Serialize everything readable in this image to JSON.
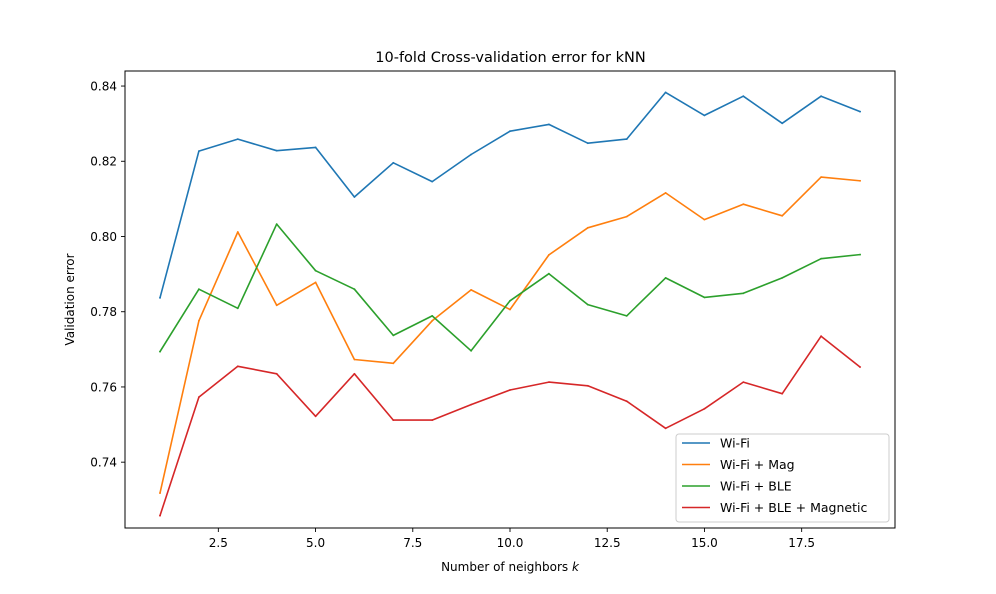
{
  "chart_data": {
    "type": "line",
    "title": "10-fold Cross-validation error for kNN",
    "xlabel": "Number of neighbors",
    "xlabel_var": "k",
    "ylabel": "Validation error",
    "xlim": [
      0.1,
      19.9
    ],
    "ylim": [
      0.7225,
      0.844
    ],
    "xticks": [
      2.5,
      5.0,
      7.5,
      10.0,
      12.5,
      15.0,
      17.5
    ],
    "xtick_labels": [
      "2.5",
      "5.0",
      "7.5",
      "10.0",
      "12.5",
      "15.0",
      "17.5"
    ],
    "yticks": [
      0.74,
      0.76,
      0.78,
      0.8,
      0.82,
      0.84
    ],
    "ytick_labels": [
      "0.74",
      "0.76",
      "0.78",
      "0.80",
      "0.82",
      "0.84"
    ],
    "grid": false,
    "legend_position": "lower-right",
    "x": [
      1,
      2,
      3,
      4,
      5,
      6,
      7,
      8,
      9,
      10,
      11,
      12,
      13,
      14,
      15,
      16,
      17,
      18,
      19
    ],
    "series": [
      {
        "name": "Wi-Fi",
        "color": "#1f77b4",
        "values": [
          0.7837,
          0.8227,
          0.8259,
          0.8228,
          0.8237,
          0.8105,
          0.8196,
          0.8146,
          0.8218,
          0.828,
          0.8298,
          0.8248,
          0.8259,
          0.8383,
          0.8322,
          0.8373,
          0.8301,
          0.8373,
          0.8332
        ]
      },
      {
        "name": "Wi-Fi + Mag",
        "color": "#ff7f0e",
        "values": [
          0.7318,
          0.7776,
          0.8012,
          0.7817,
          0.7878,
          0.7673,
          0.7663,
          0.7776,
          0.7858,
          0.7806,
          0.7951,
          0.8023,
          0.8053,
          0.8116,
          0.8045,
          0.8086,
          0.8055,
          0.8158,
          0.8148
        ]
      },
      {
        "name": "Wi-Fi + BLE",
        "color": "#2ca02c",
        "values": [
          0.7694,
          0.786,
          0.7809,
          0.8033,
          0.7909,
          0.786,
          0.7737,
          0.7789,
          0.7696,
          0.7829,
          0.7901,
          0.7819,
          0.7789,
          0.789,
          0.7838,
          0.7849,
          0.789,
          0.7941,
          0.7952
        ]
      },
      {
        "name": "Wi-Fi + BLE + Magnetic",
        "color": "#d62728",
        "values": [
          0.7258,
          0.7573,
          0.7655,
          0.7635,
          0.7522,
          0.7635,
          0.7512,
          0.7512,
          0.7553,
          0.7592,
          0.7613,
          0.7603,
          0.7562,
          0.749,
          0.7542,
          0.7613,
          0.7582,
          0.7735,
          0.7653
        ]
      }
    ]
  }
}
